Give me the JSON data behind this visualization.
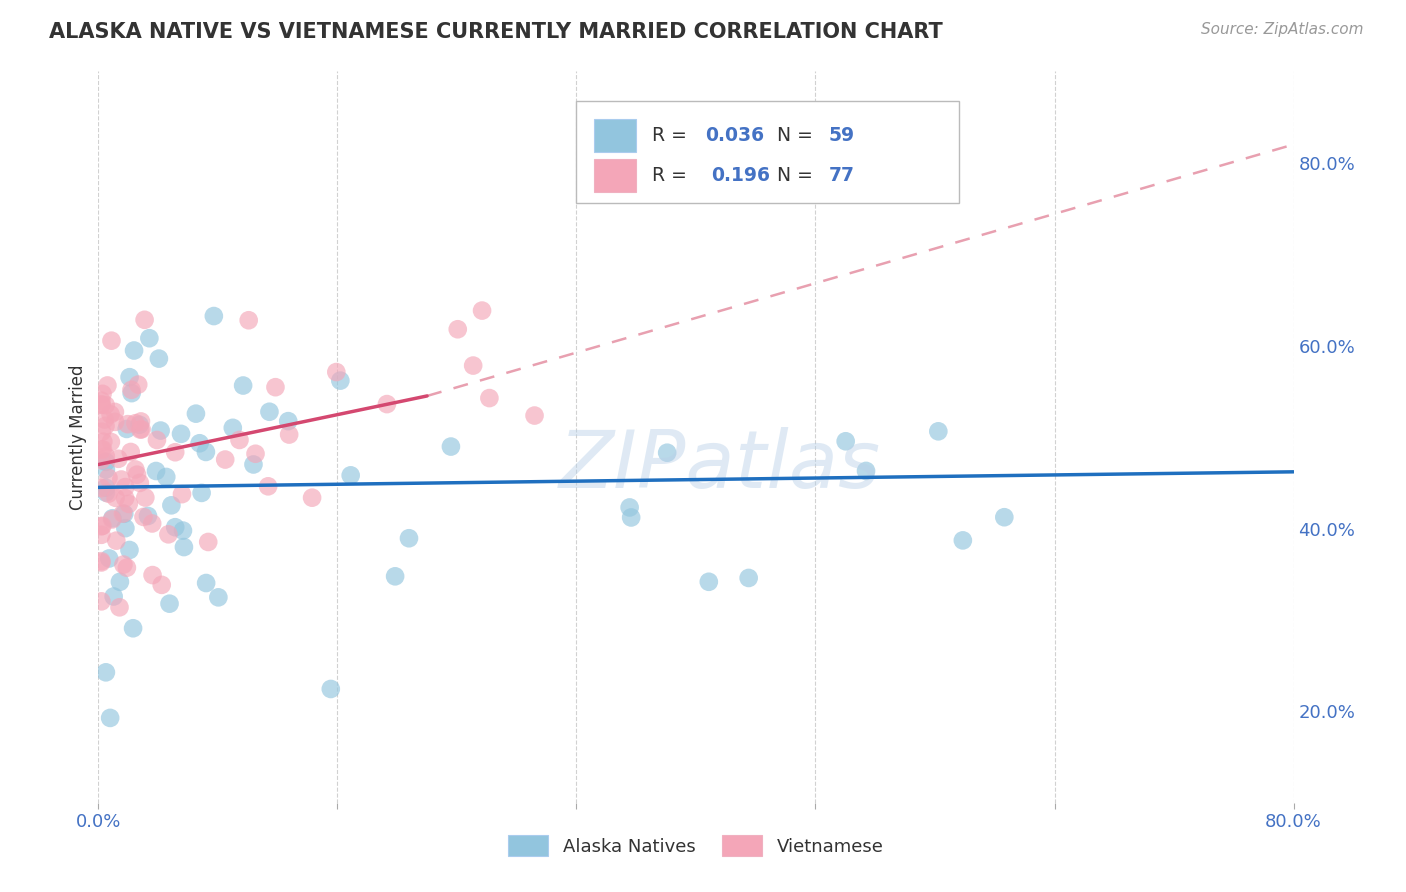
{
  "title": "ALASKA NATIVE VS VIETNAMESE CURRENTLY MARRIED CORRELATION CHART",
  "source": "Source: ZipAtlas.com",
  "ylabel": "Currently Married",
  "xlim": [
    0.0,
    0.8
  ],
  "ylim": [
    0.1,
    0.9
  ],
  "x_ticks": [
    0.0,
    0.16,
    0.32,
    0.48,
    0.64,
    0.8
  ],
  "x_tick_labels": [
    "0.0%",
    "",
    "",
    "",
    "",
    "80.0%"
  ],
  "y_ticks_right": [
    0.2,
    0.4,
    0.6,
    0.8
  ],
  "y_tick_labels_right": [
    "20.0%",
    "40.0%",
    "60.0%",
    "80.0%"
  ],
  "legend_label1": "Alaska Natives",
  "legend_label2": "Vietnamese",
  "color_alaska": "#92c5de",
  "color_vietnamese": "#f4a6b8",
  "color_line_alaska": "#1f6fbf",
  "color_line_vietnamese": "#d44870",
  "color_dashed": "#e8a0b0",
  "watermark": "ZIPatlas",
  "alaska_trend": [
    0.0,
    0.8,
    0.445,
    0.462
  ],
  "viet_solid": [
    0.0,
    0.22,
    0.47,
    0.545
  ],
  "viet_dashed": [
    0.22,
    0.8,
    0.545,
    0.82
  ]
}
